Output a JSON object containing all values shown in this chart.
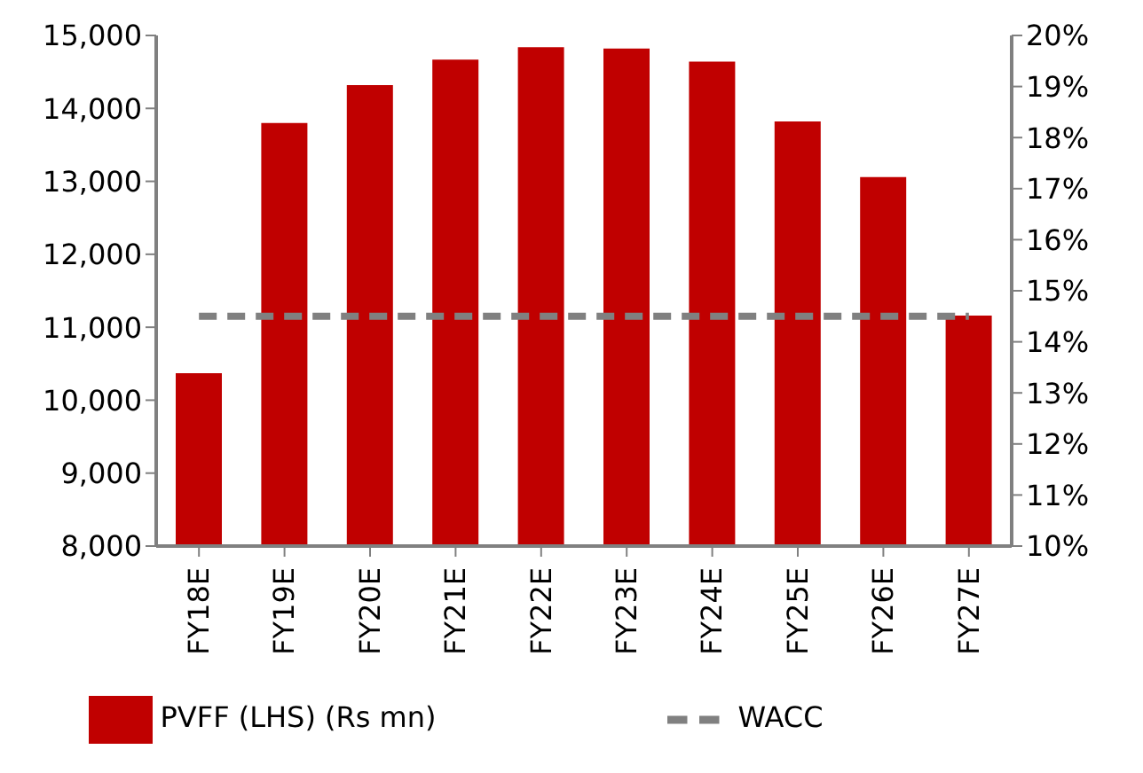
{
  "chart_data": {
    "type": "bar",
    "categories": [
      "FY18E",
      "FY19E",
      "FY20E",
      "FY21E",
      "FY22E",
      "FY23E",
      "FY24E",
      "FY25E",
      "FY26E",
      "FY27E"
    ],
    "series": [
      {
        "name": "PVFF (LHS) (Rs mn)",
        "color": "#c00000",
        "values": [
          10370,
          13800,
          14320,
          14670,
          14840,
          14820,
          14640,
          13820,
          13060,
          11160
        ]
      },
      {
        "name": "WACC",
        "type": "line",
        "axis": "y2",
        "color": "#808080",
        "line_style": "dashed",
        "marker": "none",
        "values": [
          14.5,
          14.5,
          14.5,
          14.5,
          14.5,
          14.5,
          14.5,
          14.5,
          14.5,
          14.5
        ]
      }
    ],
    "ylim": [
      8000,
      15000
    ],
    "yticks": [
      {
        "value": 8000,
        "label": "8,000"
      },
      {
        "value": 9000,
        "label": "9,000"
      },
      {
        "value": 10000,
        "label": "10,000"
      },
      {
        "value": 11000,
        "label": "11,000"
      },
      {
        "value": 12000,
        "label": "12,000"
      },
      {
        "value": 13000,
        "label": "13,000"
      },
      {
        "value": 14000,
        "label": "14,000"
      },
      {
        "value": 15000,
        "label": "15,000"
      }
    ],
    "y2lim": [
      10,
      20
    ],
    "y2ticks": [
      {
        "value": 10,
        "label": "10%"
      },
      {
        "value": 11,
        "label": "11%"
      },
      {
        "value": 12,
        "label": "12%"
      },
      {
        "value": 13,
        "label": "13%"
      },
      {
        "value": 14,
        "label": "14%"
      },
      {
        "value": 15,
        "label": "15%"
      },
      {
        "value": 16,
        "label": "16%"
      },
      {
        "value": 17,
        "label": "17%"
      },
      {
        "value": 18,
        "label": "18%"
      },
      {
        "value": 19,
        "label": "19%"
      },
      {
        "value": 20,
        "label": "20%"
      }
    ],
    "grid": false,
    "legend": "bottom"
  }
}
